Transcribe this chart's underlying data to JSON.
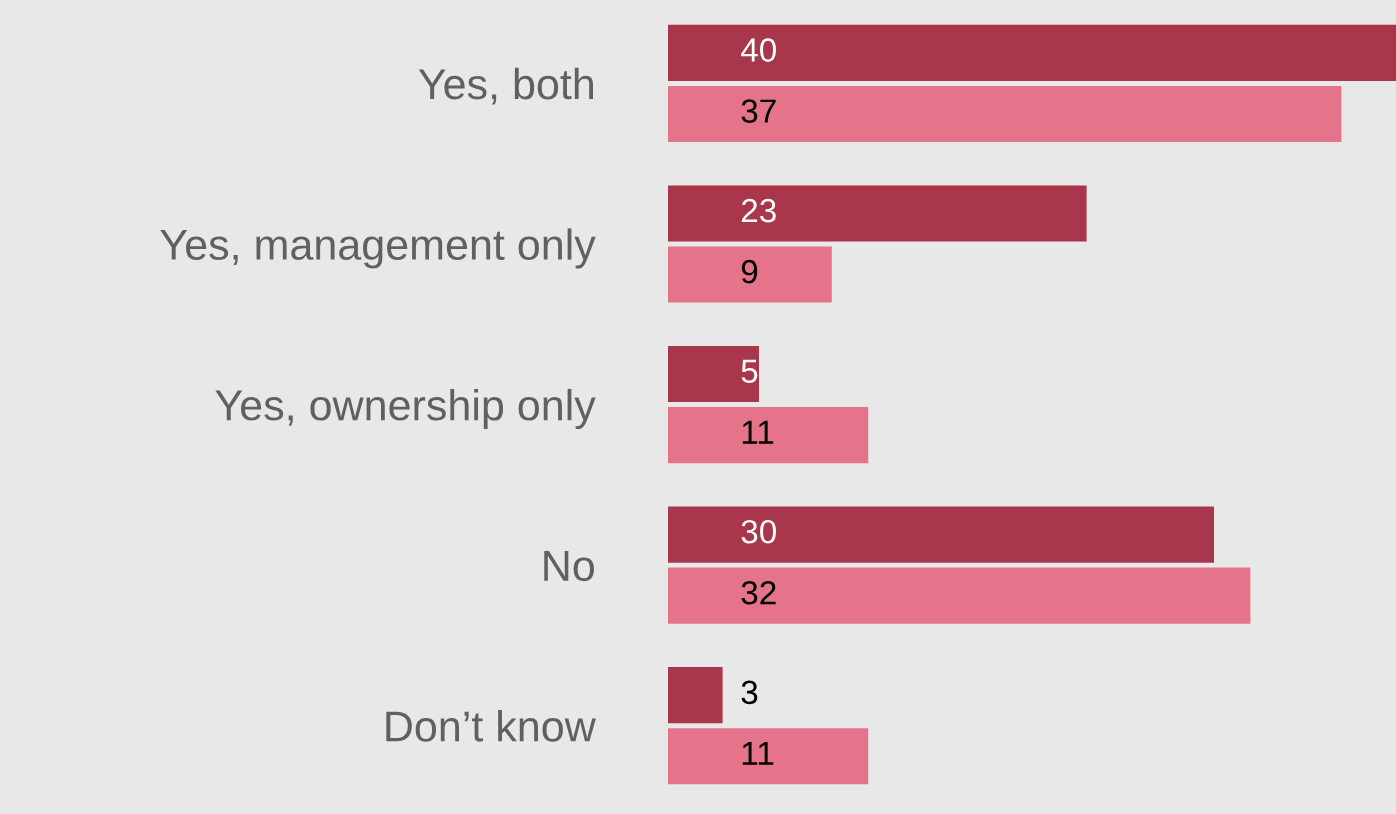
{
  "chart_data": {
    "type": "bar",
    "orientation": "horizontal",
    "data_labels": true,
    "grid": false,
    "legend": false,
    "categories": [
      "Yes, both",
      "Yes, management only",
      "Yes, ownership only",
      "No",
      "Don’t know"
    ],
    "series": [
      {
        "color": "#a8374b",
        "values": [
          40,
          23,
          5,
          30,
          3
        ]
      },
      {
        "color": "#e5738a",
        "values": [
          37,
          9,
          11,
          32,
          11
        ]
      }
    ]
  }
}
